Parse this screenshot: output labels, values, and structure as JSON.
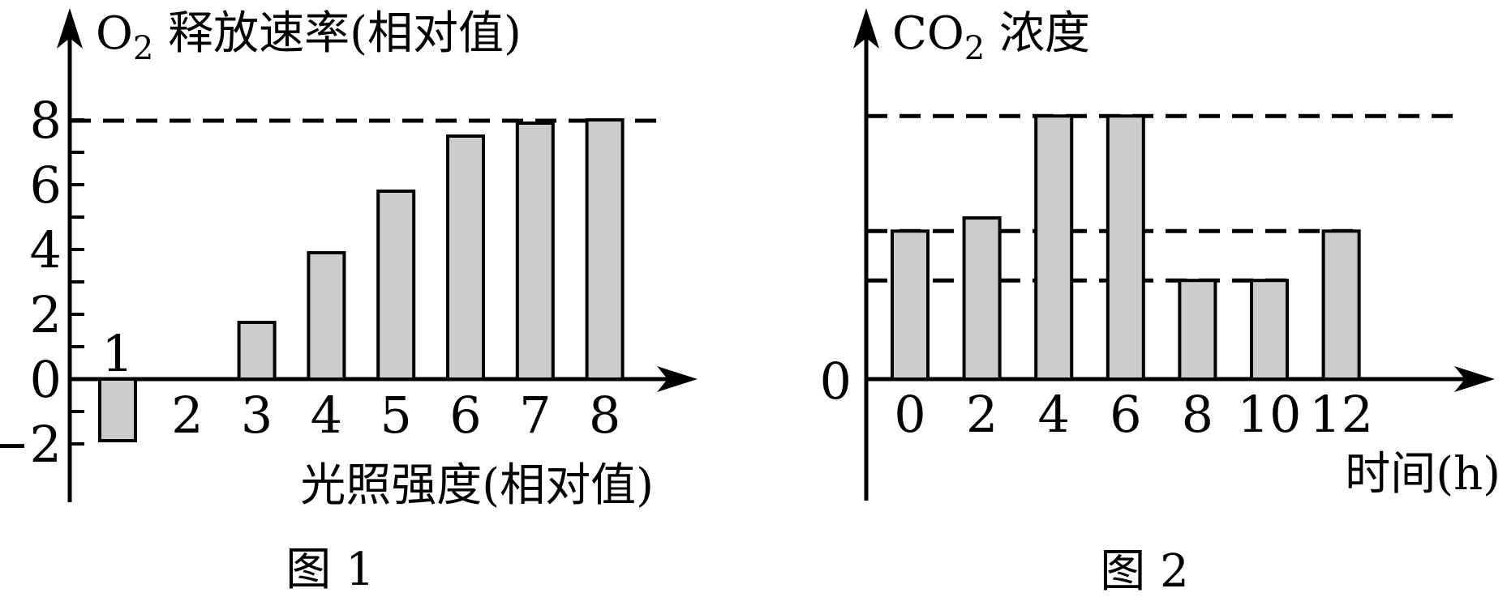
{
  "figure1": {
    "title_main": "O",
    "title_sub": "2",
    "title_rest": " 释放速率(相对值)",
    "xlabel": "光照强度(相对值)",
    "caption": "图 1",
    "y_tick_labels": [
      "8",
      "6",
      "4",
      "2",
      "0",
      "−2"
    ],
    "x_tick_labels": [
      "1",
      "2",
      "3",
      "4",
      "5",
      "6",
      "7",
      "8"
    ]
  },
  "figure2": {
    "title_main": "CO",
    "title_sub": "2",
    "title_rest": " 浓度",
    "xlabel": "时间(h)",
    "caption": "图 2",
    "origin_label": "0",
    "x_tick_labels": [
      "0",
      "2",
      "4",
      "6",
      "8",
      "10",
      "12"
    ]
  },
  "chart_data": [
    {
      "type": "bar",
      "title": "O2释放速率(相对值)",
      "xlabel": "光照强度(相对值)",
      "caption": "图 1",
      "categories": [
        1,
        2,
        3,
        4,
        5,
        6,
        7,
        8
      ],
      "values": [
        -1.9,
        0,
        1.75,
        3.9,
        5.8,
        7.5,
        7.9,
        8
      ],
      "y_ticks_labeled": [
        8,
        6,
        4,
        2,
        0,
        -2
      ],
      "y_minor_ticks": [
        7,
        5,
        3,
        1,
        -1
      ],
      "dashed_reference_lines": [
        8
      ],
      "ylim": [
        -2,
        8
      ],
      "grid": false,
      "legend": false
    },
    {
      "type": "bar",
      "title": "CO2浓度",
      "xlabel": "时间(h)",
      "caption": "图 2",
      "categories": [
        0,
        2,
        4,
        6,
        8,
        10,
        12
      ],
      "values": [
        4.5,
        4.9,
        8,
        8,
        3,
        3,
        4.5
      ],
      "y_ticks_labeled": [
        0
      ],
      "dashed_reference_lines": [
        8,
        4.5,
        3
      ],
      "ylim": [
        0,
        8
      ],
      "grid": false,
      "legend": false
    }
  ],
  "colors": {
    "bar_fill": "#cccccc",
    "bar_stroke": "#000000",
    "axis": "#000000",
    "background": "#ffffff"
  }
}
